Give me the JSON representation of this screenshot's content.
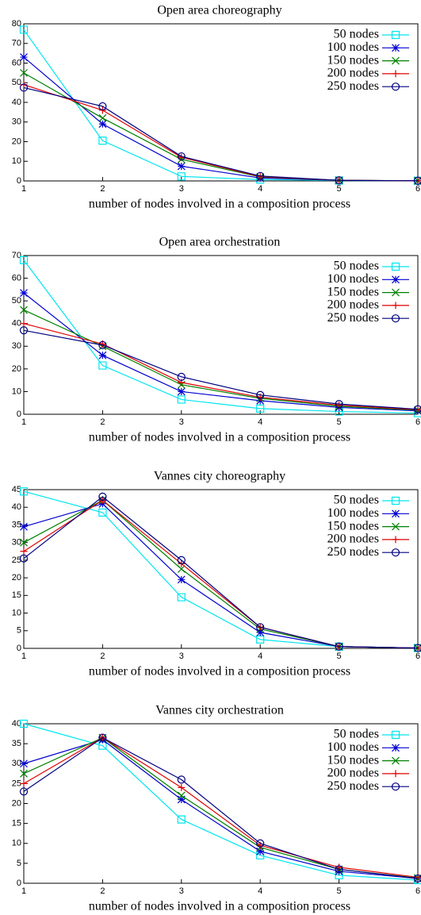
{
  "chart_data": [
    {
      "type": "line",
      "title": "Open area choreography",
      "xlabel": "number of nodes involved in a composition process",
      "x": [
        1,
        2,
        3,
        4,
        5,
        6
      ],
      "xlim": [
        1,
        6
      ],
      "xticks": [
        1,
        2,
        3,
        4,
        5,
        6
      ],
      "ylim": [
        0,
        80
      ],
      "yticks": [
        0,
        10,
        20,
        30,
        40,
        50,
        60,
        70,
        80
      ],
      "legend": "top-right",
      "grid": false,
      "series": [
        {
          "name": "50 nodes",
          "color": "#00e5ee",
          "marker": "square",
          "values": [
            77,
            20.5,
            2.3,
            0.7,
            0.2,
            0.1
          ]
        },
        {
          "name": "100 nodes",
          "color": "#0000d0",
          "marker": "star",
          "values": [
            63,
            29,
            7.5,
            1.5,
            0.3,
            0.1
          ]
        },
        {
          "name": "150 nodes",
          "color": "#008000",
          "marker": "cross",
          "values": [
            55,
            32,
            11,
            2,
            0.3,
            0.1
          ]
        },
        {
          "name": "200 nodes",
          "color": "#e00000",
          "marker": "plus",
          "values": [
            49,
            36,
            12,
            2.2,
            0.3,
            0.1
          ]
        },
        {
          "name": "250 nodes",
          "color": "#000080",
          "marker": "circle",
          "values": [
            47.5,
            38,
            12.5,
            2.5,
            0.3,
            0.1
          ]
        }
      ]
    },
    {
      "type": "line",
      "title": "Open area orchestration",
      "xlabel": "number of nodes involved in a composition process",
      "x": [
        1,
        2,
        3,
        4,
        5,
        6
      ],
      "xlim": [
        1,
        6
      ],
      "xticks": [
        1,
        2,
        3,
        4,
        5,
        6
      ],
      "ylim": [
        0,
        70
      ],
      "yticks": [
        0,
        10,
        20,
        30,
        40,
        50,
        60,
        70
      ],
      "legend": "top-right",
      "grid": false,
      "series": [
        {
          "name": "50 nodes",
          "color": "#00e5ee",
          "marker": "square",
          "values": [
            68,
            21.5,
            6.5,
            2.5,
            1.2,
            0.5
          ]
        },
        {
          "name": "100 nodes",
          "color": "#0000d0",
          "marker": "star",
          "values": [
            53.5,
            26,
            10,
            6,
            3,
            1.5
          ]
        },
        {
          "name": "150 nodes",
          "color": "#008000",
          "marker": "cross",
          "values": [
            46,
            30,
            13,
            7,
            3.5,
            1.8
          ]
        },
        {
          "name": "200 nodes",
          "color": "#e00000",
          "marker": "plus",
          "values": [
            40,
            31,
            14,
            7.5,
            4,
            2
          ]
        },
        {
          "name": "250 nodes",
          "color": "#000080",
          "marker": "circle",
          "values": [
            37,
            30.5,
            16.5,
            8.5,
            4.5,
            2.2
          ]
        }
      ]
    },
    {
      "type": "line",
      "title": "Vannes city choreography",
      "xlabel": "number of nodes involved in a composition process",
      "x": [
        1,
        2,
        3,
        4,
        5,
        6
      ],
      "xlim": [
        1,
        6
      ],
      "xticks": [
        1,
        2,
        3,
        4,
        5,
        6
      ],
      "ylim": [
        0,
        45
      ],
      "yticks": [
        0,
        5,
        10,
        15,
        20,
        25,
        30,
        35,
        40,
        45
      ],
      "legend": "top-right",
      "grid": false,
      "series": [
        {
          "name": "50 nodes",
          "color": "#00e5ee",
          "marker": "square",
          "values": [
            44.5,
            38.5,
            14.5,
            2.5,
            0.5,
            0.1
          ]
        },
        {
          "name": "100 nodes",
          "color": "#0000d0",
          "marker": "star",
          "values": [
            34.5,
            41,
            19.5,
            4.5,
            0.5,
            0.1
          ]
        },
        {
          "name": "150 nodes",
          "color": "#008000",
          "marker": "cross",
          "values": [
            30,
            42,
            22.5,
            5.5,
            0.5,
            0.1
          ]
        },
        {
          "name": "200 nodes",
          "color": "#e00000",
          "marker": "plus",
          "values": [
            27.5,
            42,
            24,
            6,
            0.5,
            0.1
          ]
        },
        {
          "name": "250 nodes",
          "color": "#000080",
          "marker": "circle",
          "values": [
            25.5,
            43,
            25,
            6,
            0.5,
            0.1
          ]
        }
      ]
    },
    {
      "type": "line",
      "title": "Vannes city orchestration",
      "xlabel": "number of nodes involved in a composition process",
      "x": [
        1,
        2,
        3,
        4,
        5,
        6
      ],
      "xlim": [
        1,
        6
      ],
      "xticks": [
        1,
        2,
        3,
        4,
        5,
        6
      ],
      "ylim": [
        0,
        40
      ],
      "yticks": [
        0,
        5,
        10,
        15,
        20,
        25,
        30,
        35,
        40
      ],
      "legend": "top-right",
      "grid": false,
      "series": [
        {
          "name": "50 nodes",
          "color": "#00e5ee",
          "marker": "square",
          "values": [
            40,
            34.5,
            16,
            7,
            2,
            0.8
          ]
        },
        {
          "name": "100 nodes",
          "color": "#0000d0",
          "marker": "star",
          "values": [
            30,
            36,
            21,
            8,
            3,
            1.2
          ]
        },
        {
          "name": "150 nodes",
          "color": "#008000",
          "marker": "cross",
          "values": [
            27.5,
            36.5,
            22,
            9,
            3.5,
            1.3
          ]
        },
        {
          "name": "200 nodes",
          "color": "#e00000",
          "marker": "plus",
          "values": [
            25,
            36.5,
            24,
            9.5,
            4,
            1.5
          ]
        },
        {
          "name": "250 nodes",
          "color": "#000080",
          "marker": "circle",
          "values": [
            23,
            36.5,
            26,
            10,
            3.5,
            1.2
          ]
        }
      ]
    }
  ]
}
